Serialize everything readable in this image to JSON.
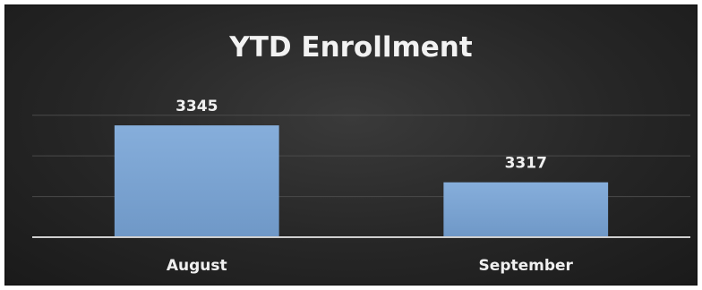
{
  "chart_data": {
    "type": "bar",
    "title": "YTD Enrollment",
    "categories": [
      "August",
      "September"
    ],
    "values": [
      3345,
      3317
    ],
    "ylim": [
      3290,
      3360
    ],
    "grid": true,
    "legend": "none",
    "data_labels": true
  },
  "colors": {
    "bar": "#7fa7d4",
    "background": "#262626"
  }
}
